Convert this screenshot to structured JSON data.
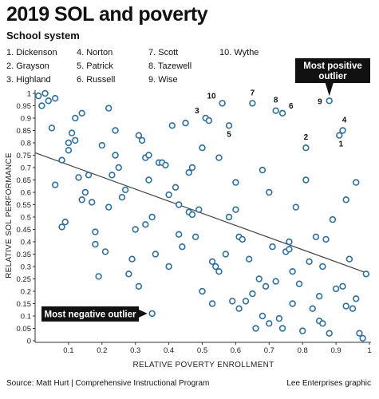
{
  "title": "2019 SOL and poverty",
  "subtitle": "School system",
  "key": [
    "1. Dickenson",
    "2. Grayson",
    "3. Highland",
    "4. Norton",
    "5. Patrick",
    "6. Russell",
    "7. Scott",
    "8. Tazewell",
    "9. Wise",
    "10. Wythe"
  ],
  "footer": {
    "source": "Source: Matt Hurt | Comprehensive Instructional Program",
    "credit": "Lee Enterprises graphic"
  },
  "colors": {
    "marker": "#2f6f9a",
    "trend": "#444444",
    "callout_bg": "#111111"
  },
  "chart_data": {
    "type": "scatter",
    "title": "2019 SOL and poverty",
    "xlabel": "RELATIVE POVERTY ENROLLMENT",
    "ylabel": "RELATIVE SOL PERFORMANCE",
    "xlim": [
      0,
      1
    ],
    "ylim": [
      0,
      1
    ],
    "xticks": [
      "0.1",
      "0.2",
      "0.3",
      "0.4",
      "0.5",
      "0.6",
      "0.7",
      "0.8",
      "0.9",
      "1"
    ],
    "yticks": [
      "0",
      "0.05",
      "0.1",
      "0.15",
      "0.2",
      "0.25",
      "0.3",
      "0.35",
      "0.4",
      "0.45",
      "0.5",
      "0.55",
      "0.6",
      "0.65",
      "0.7",
      "0.75",
      "0.8",
      "0.85",
      "0.9",
      "0.95",
      "1"
    ],
    "grid": false,
    "trendline": {
      "x": [
        0,
        1
      ],
      "y": [
        0.76,
        0.27
      ]
    },
    "points": [
      [
        0.01,
        0.99
      ],
      [
        0.02,
        0.95
      ],
      [
        0.03,
        1.0
      ],
      [
        0.04,
        0.97
      ],
      [
        0.06,
        0.98
      ],
      [
        0.05,
        0.86
      ],
      [
        0.06,
        0.63
      ],
      [
        0.08,
        0.73
      ],
      [
        0.08,
        0.46
      ],
      [
        0.09,
        0.48
      ],
      [
        0.1,
        0.77
      ],
      [
        0.1,
        0.8
      ],
      [
        0.11,
        0.84
      ],
      [
        0.12,
        0.81
      ],
      [
        0.12,
        0.9
      ],
      [
        0.13,
        0.66
      ],
      [
        0.14,
        0.92
      ],
      [
        0.14,
        0.57
      ],
      [
        0.15,
        0.6
      ],
      [
        0.16,
        0.67
      ],
      [
        0.17,
        0.56
      ],
      [
        0.18,
        0.44
      ],
      [
        0.18,
        0.39
      ],
      [
        0.19,
        0.26
      ],
      [
        0.2,
        0.79
      ],
      [
        0.21,
        0.36
      ],
      [
        0.22,
        0.94
      ],
      [
        0.22,
        0.54
      ],
      [
        0.23,
        0.67
      ],
      [
        0.24,
        0.75
      ],
      [
        0.24,
        0.85
      ],
      [
        0.25,
        0.7
      ],
      [
        0.26,
        0.58
      ],
      [
        0.27,
        0.61
      ],
      [
        0.28,
        0.27
      ],
      [
        0.29,
        0.33
      ],
      [
        0.3,
        0.45
      ],
      [
        0.31,
        0.22
      ],
      [
        0.31,
        0.83
      ],
      [
        0.32,
        0.81
      ],
      [
        0.33,
        0.74
      ],
      [
        0.33,
        0.47
      ],
      [
        0.34,
        0.75
      ],
      [
        0.34,
        0.65
      ],
      [
        0.35,
        0.5
      ],
      [
        0.36,
        0.35
      ],
      [
        0.35,
        0.11
      ],
      [
        0.37,
        0.72
      ],
      [
        0.38,
        0.72
      ],
      [
        0.39,
        0.71
      ],
      [
        0.4,
        0.59
      ],
      [
        0.4,
        0.3
      ],
      [
        0.41,
        0.87
      ],
      [
        0.42,
        0.62
      ],
      [
        0.43,
        0.43
      ],
      [
        0.43,
        0.55
      ],
      [
        0.44,
        0.38
      ],
      [
        0.45,
        0.88
      ],
      [
        0.46,
        0.52
      ],
      [
        0.46,
        0.68
      ],
      [
        0.47,
        0.51
      ],
      [
        0.47,
        0.7
      ],
      [
        0.48,
        0.42
      ],
      [
        0.49,
        0.53
      ],
      [
        0.5,
        0.78
      ],
      [
        0.5,
        0.2
      ],
      [
        0.51,
        0.9
      ],
      [
        0.52,
        0.89
      ],
      [
        0.53,
        0.32
      ],
      [
        0.53,
        0.15
      ],
      [
        0.54,
        0.3
      ],
      [
        0.55,
        0.74
      ],
      [
        0.55,
        0.28
      ],
      [
        0.56,
        0.96
      ],
      [
        0.57,
        0.35
      ],
      [
        0.58,
        0.5
      ],
      [
        0.58,
        0.87
      ],
      [
        0.59,
        0.16
      ],
      [
        0.6,
        0.64
      ],
      [
        0.6,
        0.53
      ],
      [
        0.61,
        0.42
      ],
      [
        0.61,
        0.13
      ],
      [
        0.62,
        0.41
      ],
      [
        0.63,
        0.16
      ],
      [
        0.64,
        0.33
      ],
      [
        0.65,
        0.19
      ],
      [
        0.65,
        0.96
      ],
      [
        0.66,
        0.05
      ],
      [
        0.67,
        0.25
      ],
      [
        0.68,
        0.69
      ],
      [
        0.68,
        0.1
      ],
      [
        0.69,
        0.22
      ],
      [
        0.7,
        0.07
      ],
      [
        0.7,
        0.6
      ],
      [
        0.71,
        0.38
      ],
      [
        0.72,
        0.24
      ],
      [
        0.72,
        0.93
      ],
      [
        0.73,
        0.09
      ],
      [
        0.74,
        0.92
      ],
      [
        0.74,
        0.05
      ],
      [
        0.75,
        0.36
      ],
      [
        0.76,
        0.4
      ],
      [
        0.76,
        0.37
      ],
      [
        0.77,
        0.15
      ],
      [
        0.77,
        0.28
      ],
      [
        0.78,
        0.54
      ],
      [
        0.79,
        0.23
      ],
      [
        0.8,
        0.04
      ],
      [
        0.81,
        0.65
      ],
      [
        0.81,
        0.78
      ],
      [
        0.82,
        0.32
      ],
      [
        0.83,
        0.13
      ],
      [
        0.84,
        0.42
      ],
      [
        0.85,
        0.08
      ],
      [
        0.85,
        0.18
      ],
      [
        0.86,
        0.07
      ],
      [
        0.86,
        0.3
      ],
      [
        0.87,
        0.41
      ],
      [
        0.88,
        0.97
      ],
      [
        0.88,
        0.03
      ],
      [
        0.89,
        0.49
      ],
      [
        0.9,
        0.21
      ],
      [
        0.91,
        0.83
      ],
      [
        0.92,
        0.85
      ],
      [
        0.92,
        0.22
      ],
      [
        0.93,
        0.57
      ],
      [
        0.93,
        0.14
      ],
      [
        0.94,
        0.33
      ],
      [
        0.95,
        0.13
      ],
      [
        0.96,
        0.17
      ],
      [
        0.96,
        0.64
      ],
      [
        0.97,
        0.03
      ],
      [
        0.98,
        0.01
      ],
      [
        0.99,
        0.27
      ]
    ],
    "labeled_points": [
      {
        "label": "1",
        "x": 0.91,
        "y": 0.83
      },
      {
        "label": "2",
        "x": 0.81,
        "y": 0.78
      },
      {
        "label": "3",
        "x": 0.51,
        "y": 0.9
      },
      {
        "label": "4",
        "x": 0.92,
        "y": 0.85
      },
      {
        "label": "5",
        "x": 0.58,
        "y": 0.87
      },
      {
        "label": "6",
        "x": 0.74,
        "y": 0.92
      },
      {
        "label": "7",
        "x": 0.65,
        "y": 0.96
      },
      {
        "label": "8",
        "x": 0.72,
        "y": 0.93
      },
      {
        "label": "9",
        "x": 0.88,
        "y": 0.97
      },
      {
        "label": "10",
        "x": 0.56,
        "y": 0.96
      }
    ],
    "annotations": [
      {
        "text": "Most positive outlier",
        "x": 0.88,
        "y": 0.97
      },
      {
        "text": "Most negative outlier",
        "x": 0.35,
        "y": 0.11
      }
    ]
  }
}
